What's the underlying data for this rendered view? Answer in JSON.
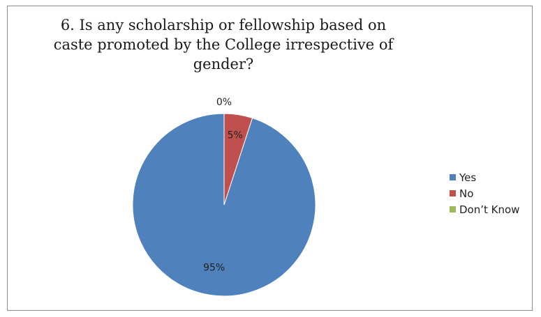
{
  "chart_data": {
    "type": "pie",
    "title": "6.  Is any scholarship or fellowship based on caste promoted by the College irrespective of gender?",
    "categories": [
      "Yes",
      "No",
      "Don’t Know"
    ],
    "values": [
      95,
      5,
      0
    ],
    "data_labels": [
      "95%",
      "5%",
      "0%"
    ],
    "colors": [
      "#4F81BD",
      "#C0504D",
      "#9BBB59"
    ],
    "legend_position": "right",
    "grid": false
  }
}
